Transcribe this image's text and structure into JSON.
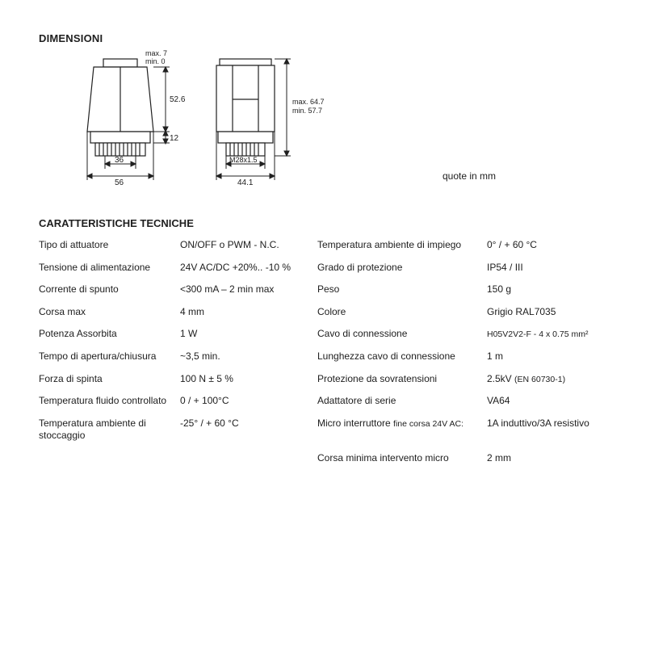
{
  "headings": {
    "dimensioni": "DIMENSIONI",
    "caratteristiche": "CARATTERISTICHE TECNICHE"
  },
  "note_quote": "quote in mm",
  "diagram": {
    "stroke": "#202020",
    "stroke_width": 1.2,
    "font_size_dim": 10,
    "left": {
      "dim_top_max": "max. 7",
      "dim_top_min": "min.  0",
      "dim_height": "52.6",
      "dim_base_ring": "12",
      "dim_inner_width": "36",
      "dim_outer_width": "56"
    },
    "right": {
      "dim_height_max": "max. 64.7",
      "dim_height_min": "min.  57.7",
      "dim_thread": "M28x1.5",
      "dim_width": "44.1"
    }
  },
  "specs_left": [
    {
      "label": "Tipo di attuatore",
      "value": "ON/OFF o PWM - N.C."
    },
    {
      "label": "Tensione di alimentazione",
      "value": "24V AC/DC +20%.. -10 %"
    },
    {
      "label": "Corrente di spunto",
      "value": "<300 mA – 2 min max"
    },
    {
      "label": "Corsa max",
      "value": "4 mm"
    },
    {
      "label": "Potenza Assorbita",
      "value": "1 W"
    },
    {
      "label": "Tempo di apertura/chiusura",
      "value": "~3,5 min."
    },
    {
      "label": "Forza di spinta",
      "value": "100 N ± 5 %"
    },
    {
      "label": "Temperatura fluido controllato",
      "value": "0 / +  100°C"
    },
    {
      "label": "Temperatura ambiente di stoccaggio",
      "value": "-25° / + 60 °C"
    }
  ],
  "specs_right": [
    {
      "label": "Temperatura ambiente di impiego",
      "value": "0° / + 60 °C"
    },
    {
      "label": "Grado di protezione",
      "value": "IP54 / III"
    },
    {
      "label": "Peso",
      "value": "150 g"
    },
    {
      "label": "Colore",
      "value": "Grigio RAL7035"
    },
    {
      "label": "Cavo di connessione",
      "value": "H05V2V2-F - 4 x 0.75 mm²",
      "small": true
    },
    {
      "label": "Lunghezza cavo di connessione",
      "value": "1 m"
    },
    {
      "label": "Protezione da sovratensioni",
      "value": "2.5kV (EN 60730-1)",
      "parenSmall": true
    },
    {
      "label": "Adattatore di serie",
      "value": "VA64"
    },
    {
      "label": "Micro interruttore fine corsa 24V AC:",
      "value": "1A induttivo/3A resistivo",
      "labelTailSmall": "fine corsa 24V AC:"
    },
    {
      "label": "Corsa minima intervento micro",
      "value": "2 mm"
    }
  ]
}
